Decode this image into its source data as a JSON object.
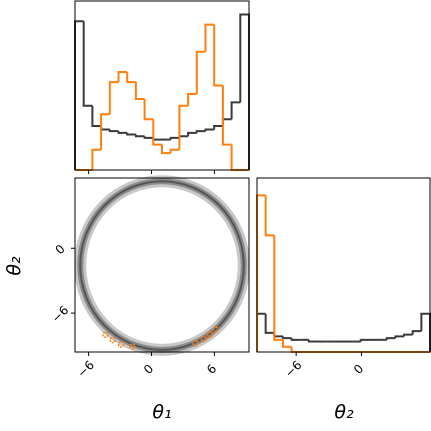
{
  "chart_data": [
    {
      "type": "histogram",
      "bins": [
        -7.3,
        -6.47,
        -5.64,
        -4.81,
        -3.98,
        -3.15,
        -2.32,
        -1.49,
        -0.66,
        0.17,
        1.0,
        1.83,
        2.66,
        3.49,
        4.32,
        5.15,
        5.98,
        6.81,
        7.64,
        8.47,
        9.3
      ],
      "series": [
        {
          "name": "gray",
          "color": "#3a3a3a",
          "values": [
            0.88,
            0.38,
            0.26,
            0.24,
            0.23,
            0.22,
            0.21,
            0.2,
            0.19,
            0.18,
            0.18,
            0.19,
            0.2,
            0.22,
            0.23,
            0.24,
            0.26,
            0.3,
            0.4,
            0.92
          ]
        },
        {
          "name": "orange",
          "color": "#ff7f0e",
          "values": [
            0,
            0,
            0.12,
            0.33,
            0.52,
            0.58,
            0.52,
            0.42,
            0.3,
            0.15,
            0.1,
            0.12,
            0.38,
            0.45,
            0.7,
            0.86,
            0.5,
            0.15,
            0,
            0
          ]
        }
      ],
      "xlim": [
        -7.3,
        9.3
      ],
      "ylim": [
        0,
        1
      ],
      "xticks": [
        {
          "value": -6,
          "label": "−6"
        },
        0,
        6
      ]
    },
    {
      "type": "contour",
      "xlabel": "θ₁",
      "ylabel": "θ₂",
      "ring": {
        "cx": 1.0,
        "cy": -1.6,
        "r": 7.8,
        "color": "#555555"
      },
      "points": {
        "color": "#ff7f0e",
        "x": [
          -4.4,
          -3.7,
          -2.9,
          -1.8,
          4.2,
          5.0,
          5.6,
          6.1
        ],
        "y": [
          -8.0,
          -8.5,
          -8.9,
          -9.1,
          -8.8,
          -8.4,
          -8.0,
          -7.5
        ]
      },
      "xlim": [
        -7.3,
        9.3
      ],
      "ylim": [
        -9.6,
        6.5
      ],
      "xticks": [
        {
          "value": -6,
          "label": "−6"
        },
        0,
        6
      ],
      "yticks": [
        {
          "value": -6,
          "label": "−6"
        },
        0
      ]
    },
    {
      "type": "histogram",
      "xlabel": "θ₂",
      "bins": [
        -9.6,
        -8.805,
        -8.01,
        -7.215,
        -6.42,
        -5.625,
        -4.83,
        -4.035,
        -3.24,
        -2.445,
        -1.65,
        -0.855,
        -0.06,
        0.735,
        1.53,
        2.325,
        3.12,
        3.915,
        4.71,
        5.505,
        6.3
      ],
      "series": [
        {
          "name": "gray",
          "color": "#3a3a3a",
          "values": [
            0.22,
            0.11,
            0.09,
            0.08,
            0.07,
            0.07,
            0.06,
            0.06,
            0.06,
            0.06,
            0.06,
            0.06,
            0.07,
            0.07,
            0.07,
            0.08,
            0.09,
            0.1,
            0.12,
            0.22
          ]
        },
        {
          "name": "orange",
          "color": "#ff7f0e",
          "values": [
            0.9,
            0.67,
            0.07,
            0.03,
            0,
            0,
            0,
            0,
            0,
            0,
            0,
            0,
            0,
            0,
            0,
            0,
            0,
            0,
            0,
            0
          ]
        }
      ],
      "xlim": [
        -9.6,
        6.3
      ],
      "ylim": [
        0,
        1
      ],
      "xticks": [
        {
          "value": -6,
          "label": "−6"
        },
        0
      ]
    }
  ]
}
